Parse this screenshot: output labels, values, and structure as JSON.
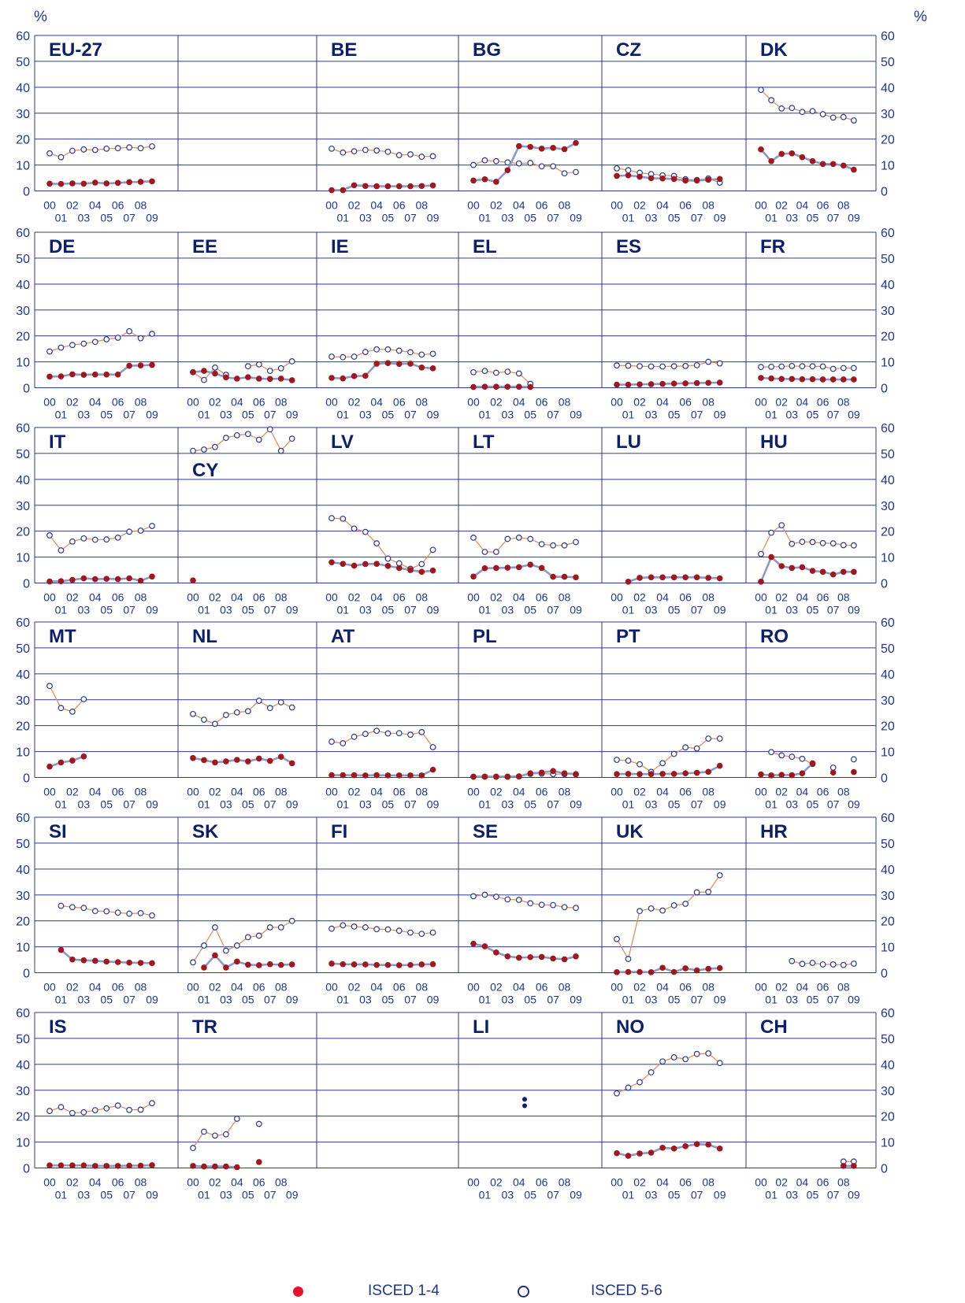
{
  "unit_left": "%",
  "unit_right": "%",
  "y_ticks": [
    "0",
    "10",
    "20",
    "30",
    "40",
    "50",
    "60"
  ],
  "x_ticks_top": [
    "00",
    "02",
    "04",
    "06",
    "08"
  ],
  "x_ticks_bottom": [
    "01",
    "03",
    "05",
    "07",
    "09"
  ],
  "legend": {
    "filled_label": "ISCED 1-4",
    "open_label": "ISCED 5-6"
  },
  "colors": {
    "frame": "#2b3990",
    "label": "#1f3590",
    "title": "#0d1f6b",
    "filled": "#a0181e",
    "filled_line": "#8f96c8",
    "open": "#2b3990",
    "open_line": "#e0905a",
    "legend_filled": "#e8102a"
  },
  "chart_data": {
    "type": "line",
    "x": [
      2000,
      2001,
      2002,
      2003,
      2004,
      2005,
      2006,
      2007,
      2008,
      2009
    ],
    "ylim": [
      0,
      60
    ],
    "series_names": [
      "ISCED 1-4",
      "ISCED 5-6"
    ],
    "panels": [
      {
        "code": "EU-27",
        "isced14": [
          2.8,
          2.7,
          2.9,
          2.8,
          3.2,
          2.9,
          3.1,
          3.4,
          3.5,
          3.7
        ],
        "isced56": [
          14.5,
          13,
          15.5,
          16,
          15.8,
          16.3,
          16.5,
          16.8,
          16.5,
          17.2
        ]
      },
      {
        "code": "",
        "isced14": [],
        "isced56": []
      },
      {
        "code": "BE",
        "isced14": [
          0.3,
          0.3,
          2.2,
          1.9,
          1.8,
          1.8,
          1.8,
          1.8,
          1.9,
          2.1
        ],
        "isced56": [
          16.3,
          14.8,
          15.3,
          15.8,
          15.6,
          15.1,
          13.8,
          14.1,
          13.2,
          13.4
        ]
      },
      {
        "code": "BG",
        "isced14": [
          4,
          4.5,
          3.5,
          8,
          17.3,
          17,
          16.3,
          16.6,
          16.1,
          18.5
        ],
        "isced56": [
          10,
          11.8,
          11.5,
          11,
          10.6,
          10.8,
          9.5,
          9.5,
          6.8,
          7.3
        ]
      },
      {
        "code": "CZ",
        "isced14": [
          5.8,
          6,
          5.5,
          4.9,
          4.8,
          4.6,
          4,
          4,
          4.3,
          4.6
        ],
        "isced56": [
          8.7,
          8,
          7,
          6.5,
          6,
          5.8,
          4.5,
          4.2,
          4.8,
          3.2
        ]
      },
      {
        "code": "DK",
        "isced14": [
          16,
          11.5,
          14.3,
          14.5,
          13,
          11.5,
          10.4,
          10.4,
          9.8,
          8.2
        ],
        "isced56": [
          39,
          35,
          31.8,
          32,
          30.5,
          30.8,
          29.6,
          28.3,
          28.5,
          27.2
        ]
      },
      {
        "code": "DE",
        "isced14": [
          4.3,
          4.4,
          5.2,
          5,
          5.1,
          5.1,
          5.1,
          8.5,
          8.6,
          8.8
        ],
        "isced56": [
          14,
          15.5,
          16.5,
          17,
          17.7,
          18.7,
          19.3,
          21.8,
          19.1,
          20.8
        ]
      },
      {
        "code": "EE",
        "isced14": [
          6,
          6.5,
          5.5,
          4,
          3.5,
          4.1,
          3.5,
          3.4,
          3.5,
          2.9
        ],
        "isced56": [
          6,
          3,
          7.8,
          5,
          null,
          8.3,
          9,
          6.5,
          7.5,
          10.2
        ]
      },
      {
        "code": "IE",
        "isced14": [
          3.8,
          3.6,
          4.5,
          4.6,
          9.3,
          9.5,
          9.2,
          9.3,
          7.8,
          7.5
        ],
        "isced56": [
          12,
          11.8,
          12,
          13.8,
          14.8,
          14.8,
          14.3,
          13.7,
          12.8,
          13.1
        ]
      },
      {
        "code": "EL",
        "isced14": [
          0.3,
          0.4,
          0.4,
          0.4,
          0.4,
          0.3,
          null,
          null,
          null,
          null
        ],
        "isced56": [
          6,
          6.5,
          5.8,
          6.2,
          5.5,
          1.5,
          null,
          null,
          null,
          null
        ]
      },
      {
        "code": "ES",
        "isced14": [
          1.2,
          1.2,
          1.3,
          1.4,
          1.5,
          1.6,
          1.7,
          1.8,
          1.9,
          2
        ],
        "isced56": [
          8.6,
          8.5,
          8.3,
          8.2,
          8.2,
          8.3,
          8.4,
          8.7,
          10,
          9.4
        ]
      },
      {
        "code": "FR",
        "isced14": [
          3.8,
          3.6,
          3.4,
          3.4,
          3.3,
          3.3,
          3.2,
          3.2,
          3.2,
          3.2
        ],
        "isced56": [
          8,
          8.1,
          8.2,
          8.4,
          8.3,
          8.3,
          8.2,
          7.3,
          7.6,
          7.6
        ]
      },
      {
        "code": "IT",
        "isced14": [
          0.6,
          0.7,
          1.2,
          1.8,
          1.5,
          1.6,
          1.5,
          1.8,
          0.9,
          2.5
        ],
        "isced56": [
          18.4,
          12.6,
          16,
          17.2,
          16.7,
          16.8,
          17.5,
          19.8,
          20.2,
          22
        ]
      },
      {
        "code": "CY",
        "isced14": [
          1,
          null,
          null,
          null,
          null,
          null,
          null,
          null,
          null,
          null
        ],
        "isced56": [
          51,
          51.5,
          52.5,
          56,
          57,
          57.5,
          55.3,
          59.3,
          51,
          55.7
        ]
      },
      {
        "code": "LV",
        "isced14": [
          8,
          7.4,
          6.7,
          7.3,
          7.4,
          6.6,
          5.8,
          5,
          4.3,
          4.8
        ],
        "isced56": [
          25,
          24.8,
          21,
          19.7,
          15.3,
          9.4,
          7.6,
          5.5,
          7.3,
          12.8
        ]
      },
      {
        "code": "LT",
        "isced14": [
          2.5,
          5.7,
          5.8,
          5.9,
          6.1,
          7.1,
          5.8,
          2.4,
          2.4,
          2.2
        ],
        "isced56": [
          17.5,
          12,
          12,
          17,
          17.5,
          17,
          15,
          14.5,
          14.5,
          15.8
        ]
      },
      {
        "code": "LU",
        "isced14": [
          null,
          0.5,
          2,
          2.2,
          2.2,
          2.2,
          2.2,
          2.2,
          2,
          1.8
        ],
        "isced56": []
      },
      {
        "code": "HU",
        "isced14": [
          0.5,
          10,
          6.5,
          5.8,
          6.1,
          4.7,
          4.3,
          3.3,
          4.3,
          4.3
        ],
        "isced56": [
          11.2,
          19.4,
          22.3,
          15.1,
          15.9,
          15.8,
          15.4,
          15.3,
          14.6,
          14.5
        ]
      },
      {
        "code": "MT",
        "isced14": [
          4.2,
          5.8,
          6.5,
          8.1,
          null,
          null,
          null,
          null,
          null,
          null
        ],
        "isced56": [
          35.3,
          26.8,
          25.4,
          30.2,
          null,
          null,
          null,
          null,
          null,
          null
        ]
      },
      {
        "code": "NL",
        "isced14": [
          7.5,
          6.7,
          5.8,
          6.2,
          6.8,
          6.2,
          7.3,
          6.4,
          8,
          5.5
        ],
        "isced56": [
          24.5,
          22.3,
          20.7,
          24.1,
          25.1,
          25.6,
          29.6,
          26.8,
          29,
          27
        ]
      },
      {
        "code": "AT",
        "isced14": [
          0.9,
          0.9,
          0.9,
          0.8,
          0.9,
          0.8,
          0.8,
          0.8,
          0.8,
          3
        ],
        "isced56": [
          13.8,
          13.2,
          15.7,
          16.8,
          18,
          17,
          17.1,
          16.5,
          17.5,
          11.7
        ]
      },
      {
        "code": "PL",
        "isced14": [
          0.3,
          0.3,
          0.3,
          0.3,
          0.4,
          1.6,
          1.9,
          2.5,
          1.6,
          1.3
        ],
        "isced56": [
          0.3,
          0.3,
          0.3,
          0.3,
          0.4,
          1.4,
          1.5,
          1.3,
          1.3,
          1.2
        ]
      },
      {
        "code": "PT",
        "isced14": [
          1.3,
          1.4,
          1.3,
          1.3,
          1.4,
          1.4,
          1.6,
          1.8,
          2.2,
          4.5
        ],
        "isced56": [
          6.8,
          6.5,
          5.1,
          2.2,
          5.5,
          9.1,
          11.6,
          11.2,
          15,
          15
        ]
      },
      {
        "code": "RO",
        "isced14": [
          1.2,
          0.8,
          1,
          0.9,
          1.6,
          5.5,
          null,
          1.9,
          null,
          2.1
        ],
        "isced56": [
          null,
          9.8,
          8.5,
          8,
          7.2,
          5.2,
          null,
          3.8,
          null,
          7
        ]
      },
      {
        "code": "SI",
        "isced14": [
          null,
          8.8,
          5.1,
          4.8,
          4.6,
          4.3,
          4.1,
          3.9,
          3.8,
          3.7
        ],
        "isced56": [
          null,
          25.8,
          25.3,
          25,
          23.8,
          23.7,
          23.2,
          22.8,
          23,
          22.1
        ]
      },
      {
        "code": "SK",
        "isced14": [
          null,
          2,
          6.7,
          2,
          4.3,
          3.1,
          2.9,
          3.3,
          3,
          3.2
        ],
        "isced56": [
          4,
          10.5,
          17.5,
          8.5,
          10.5,
          13.7,
          14.3,
          17.5,
          17.5,
          20
        ]
      },
      {
        "code": "FI",
        "isced14": [
          3.5,
          3.3,
          3.2,
          3.2,
          3,
          3,
          2.9,
          3,
          3.2,
          3.3
        ],
        "isced56": [
          17,
          18.3,
          17.8,
          17.5,
          16.8,
          16.7,
          16.2,
          15.5,
          15,
          15.5
        ]
      },
      {
        "code": "SE",
        "isced14": [
          11.2,
          10.2,
          7.8,
          6.3,
          5.8,
          6,
          6.1,
          5.5,
          5.2,
          6.3
        ],
        "isced56": [
          29.5,
          30.1,
          29.3,
          28.3,
          28.1,
          26.8,
          26.2,
          26.1,
          25.3,
          25
        ]
      },
      {
        "code": "UK",
        "isced14": [
          0.2,
          0.3,
          0.3,
          0.2,
          1.9,
          0.3,
          1.7,
          0.9,
          1.5,
          1.8
        ],
        "isced56": [
          13,
          5.3,
          23.8,
          24.8,
          24,
          26,
          26.6,
          31,
          31.2,
          37.6
        ]
      },
      {
        "code": "HR",
        "isced14": [],
        "isced56": [
          null,
          null,
          null,
          4.5,
          3.4,
          3.8,
          3.2,
          3.2,
          3,
          3.5
        ]
      },
      {
        "code": "IS",
        "isced14": [
          1,
          1,
          1,
          1,
          0.8,
          0.8,
          0.8,
          0.9,
          0.9,
          1.1
        ],
        "isced56": [
          22,
          23.5,
          21.2,
          21.5,
          22.3,
          23,
          24.1,
          22.4,
          22.5,
          25
        ]
      },
      {
        "code": "TR",
        "isced14": [
          0.8,
          0.6,
          0.6,
          0.6,
          0.3,
          null,
          2.3,
          null,
          null,
          null
        ],
        "isced56": [
          7.7,
          14,
          12.5,
          13,
          19,
          null,
          17,
          null,
          null,
          null
        ]
      },
      {
        "code": "",
        "isced14": [],
        "isced56": []
      },
      {
        "code": "LI",
        "isced14": [],
        "isced56": [],
        "single_value_points": [
          {
            "x": 2004.5,
            "y": 24
          },
          {
            "x": 2004.5,
            "y": 26.5
          }
        ]
      },
      {
        "code": "NO",
        "isced14": [
          5.7,
          4.7,
          5.6,
          5.9,
          7.8,
          7.5,
          8.4,
          9.2,
          9,
          7.5
        ],
        "isced56": [
          28.8,
          31,
          33.1,
          36.9,
          41.1,
          42.7,
          42,
          44,
          44.2,
          40.5
        ]
      },
      {
        "code": "CH",
        "isced14": [
          null,
          null,
          null,
          null,
          null,
          null,
          null,
          null,
          0.8,
          0.8
        ],
        "isced56": [
          null,
          null,
          null,
          null,
          null,
          null,
          null,
          null,
          2.5,
          2.5
        ]
      }
    ]
  }
}
